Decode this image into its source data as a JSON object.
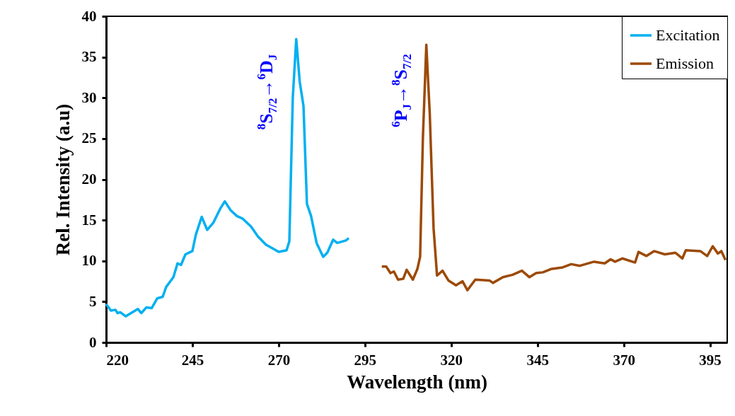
{
  "chart_data": {
    "type": "line",
    "xlabel": "Wavelength (nm)",
    "ylabel": "Rel. Intensity (a.u)",
    "xlim": [
      220,
      400
    ],
    "xticks": [
      220,
      245,
      270,
      295,
      320,
      345,
      370,
      395
    ],
    "ylim": [
      0,
      40
    ],
    "yticks": [
      0,
      5,
      10,
      15,
      20,
      25,
      30,
      35,
      40
    ],
    "grid": false,
    "legend": "top right",
    "marker": "none",
    "line_style": "solid",
    "annotations": [
      "$^{8}$S$_{7/2}$→$^{6}$D$_{J}$",
      "$^{6}$P$_{J}$→$^{8}$S$_{7/2}$"
    ],
    "series": [
      {
        "name": "Excitation",
        "color": "#00b0f0",
        "x": [
          220,
          221.4,
          222.7,
          223.3,
          224.1,
          225.7,
          229.2,
          230.2,
          231.7,
          233.2,
          234.8,
          236.4,
          237.4,
          239.5,
          240.7,
          241.7,
          243,
          245,
          246,
          247.7,
          249.3,
          251.1,
          253.2,
          254.4,
          256.1,
          257.9,
          259.5,
          262,
          264,
          266.3,
          268.4,
          270,
          272.3,
          273.1,
          274.1,
          275.1,
          276.1,
          277.2,
          278.2,
          279.4,
          281,
          282.9,
          284.1,
          285.8,
          287,
          289.5,
          290.3
        ],
        "values": [
          4.7,
          3.9,
          4.0,
          3.6,
          3.7,
          3.2,
          4.1,
          3.6,
          4.3,
          4.2,
          5.4,
          5.6,
          6.8,
          8.0,
          9.7,
          9.5,
          10.8,
          11.2,
          13.2,
          15.4,
          13.8,
          14.7,
          16.5,
          17.3,
          16.2,
          15.5,
          15.2,
          14.2,
          13.0,
          12.0,
          11.5,
          11.1,
          11.3,
          12.4,
          30,
          37.2,
          32,
          29,
          17,
          15.5,
          12.2,
          10.5,
          11.0,
          12.6,
          12.2,
          12.5,
          12.8
        ]
      },
      {
        "name": "Emission",
        "color": "#9c4a06",
        "x": [
          299.9,
          301.2,
          302.4,
          303.4,
          304.6,
          306.1,
          307.1,
          308.9,
          310.2,
          311,
          311.8,
          312.8,
          313.8,
          314.9,
          315.9,
          317.5,
          319.2,
          321.4,
          323.3,
          324.7,
          327,
          331.1,
          332.1,
          335,
          337.8,
          340.5,
          342.7,
          344.6,
          346.6,
          348.9,
          352.3,
          354.8,
          357.3,
          361.4,
          364.5,
          366.2,
          367.5,
          369.6,
          373.3,
          374.3,
          376.6,
          378.8,
          381.9,
          385,
          387,
          388,
          392.2,
          394.2,
          395.8,
          397.3,
          398.3,
          399.5
        ],
        "values": [
          9.3,
          9.3,
          8.5,
          8.7,
          7.7,
          7.8,
          8.9,
          7.7,
          9.0,
          10.5,
          25,
          36.5,
          28,
          14,
          8.2,
          8.8,
          7.6,
          7.0,
          7.5,
          6.4,
          7.7,
          7.6,
          7.3,
          8.0,
          8.3,
          8.8,
          8.0,
          8.5,
          8.6,
          9.0,
          9.2,
          9.6,
          9.4,
          9.9,
          9.7,
          10.2,
          9.9,
          10.3,
          9.8,
          11.1,
          10.6,
          11.2,
          10.8,
          11.0,
          10.3,
          11.3,
          11.2,
          10.6,
          11.8,
          10.9,
          11.2,
          10.1
        ]
      }
    ]
  }
}
